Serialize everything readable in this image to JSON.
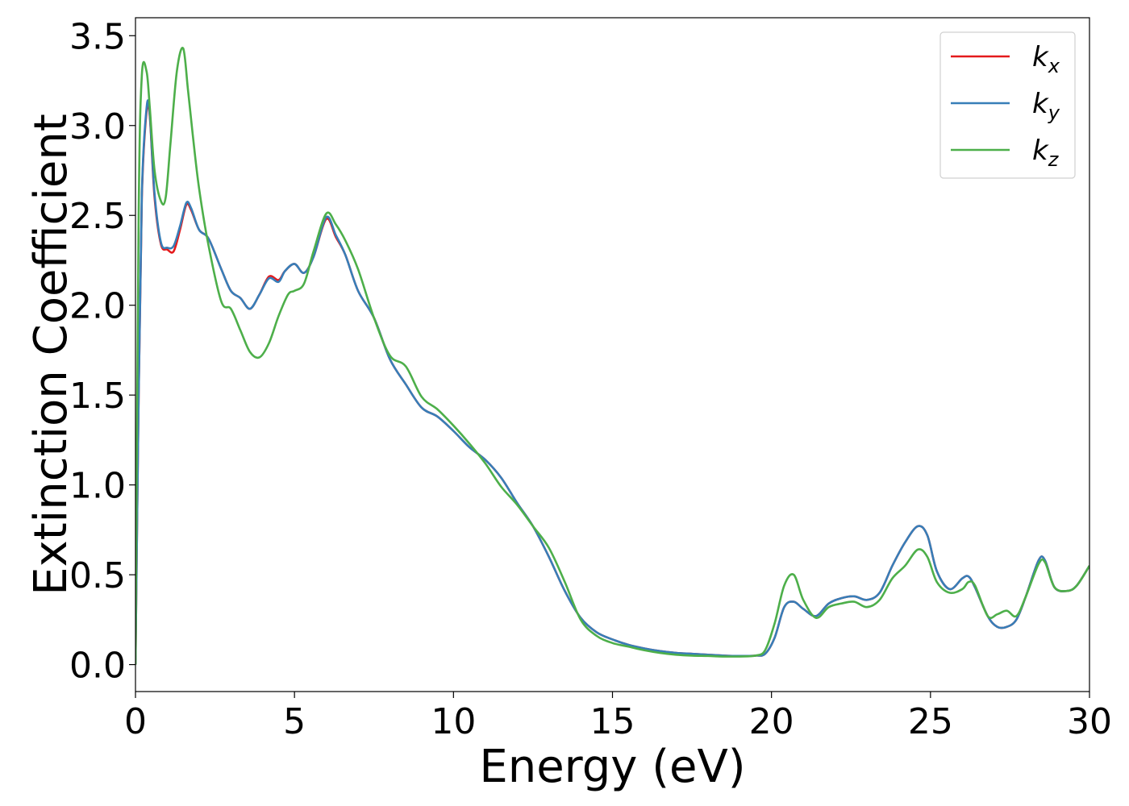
{
  "chart_data": {
    "type": "line",
    "title": "",
    "xlabel": "Energy (eV)",
    "ylabel": "Extinction Coefficient",
    "xlim": [
      0,
      30
    ],
    "ylim": [
      -0.15,
      3.6
    ],
    "xticks": [
      0,
      5,
      10,
      15,
      20,
      25,
      30
    ],
    "yticks": [
      0.0,
      0.5,
      1.0,
      1.5,
      2.0,
      2.5,
      3.0,
      3.5
    ],
    "xtick_labels": [
      "0",
      "5",
      "10",
      "15",
      "20",
      "25",
      "30"
    ],
    "ytick_labels": [
      "0.0",
      "0.5",
      "1.0",
      "1.5",
      "2.0",
      "2.5",
      "3.0",
      "3.5"
    ],
    "grid": false,
    "legend_position": "top-right",
    "series": [
      {
        "name": "k_x",
        "label_base": "k",
        "label_sub": "x",
        "color": "#e41a1c",
        "x": [
          0,
          0.1,
          0.2,
          0.35,
          0.45,
          0.6,
          0.8,
          1.0,
          1.2,
          1.4,
          1.6,
          1.75,
          2.0,
          2.3,
          2.7,
          3.0,
          3.3,
          3.6,
          3.9,
          4.2,
          4.5,
          4.7,
          5.0,
          5.3,
          5.6,
          6.0,
          6.3,
          6.6,
          7.0,
          7.5,
          8.0,
          8.5,
          9.0,
          9.5,
          10.0,
          10.5,
          11.0,
          11.5,
          12.0,
          12.5,
          13.0,
          13.5,
          14.0,
          14.5,
          15.0,
          15.5,
          16.0,
          16.5,
          17.0,
          17.5,
          18.0,
          18.5,
          19.0,
          19.5,
          19.8,
          20.1,
          20.4,
          20.7,
          21.0,
          21.4,
          21.8,
          22.2,
          22.6,
          23.0,
          23.4,
          23.8,
          24.2,
          24.6,
          24.9,
          25.2,
          25.6,
          26.0,
          26.2,
          26.4,
          26.8,
          27.1,
          27.4,
          27.7,
          28.0,
          28.4,
          28.6,
          28.9,
          29.3,
          29.6,
          30.0
        ],
        "y": [
          0.0,
          1.5,
          2.6,
          3.08,
          3.05,
          2.6,
          2.34,
          2.31,
          2.3,
          2.42,
          2.56,
          2.53,
          2.42,
          2.37,
          2.2,
          2.08,
          2.04,
          1.98,
          2.06,
          2.16,
          2.14,
          2.19,
          2.23,
          2.18,
          2.27,
          2.48,
          2.38,
          2.28,
          2.08,
          1.93,
          1.7,
          1.56,
          1.43,
          1.38,
          1.3,
          1.21,
          1.14,
          1.04,
          0.9,
          0.77,
          0.6,
          0.41,
          0.26,
          0.18,
          0.14,
          0.11,
          0.09,
          0.075,
          0.065,
          0.06,
          0.055,
          0.05,
          0.048,
          0.05,
          0.06,
          0.15,
          0.32,
          0.35,
          0.31,
          0.27,
          0.34,
          0.37,
          0.38,
          0.36,
          0.4,
          0.55,
          0.68,
          0.77,
          0.72,
          0.52,
          0.42,
          0.48,
          0.49,
          0.43,
          0.27,
          0.21,
          0.21,
          0.25,
          0.38,
          0.58,
          0.58,
          0.43,
          0.41,
          0.44,
          0.55
        ]
      },
      {
        "name": "k_y",
        "label_base": "k",
        "label_sub": "y",
        "color": "#377eb8",
        "x": [
          0,
          0.1,
          0.2,
          0.35,
          0.45,
          0.6,
          0.8,
          1.0,
          1.2,
          1.4,
          1.6,
          1.75,
          2.0,
          2.3,
          2.7,
          3.0,
          3.3,
          3.6,
          3.9,
          4.2,
          4.5,
          4.7,
          5.0,
          5.3,
          5.6,
          6.0,
          6.3,
          6.6,
          7.0,
          7.5,
          8.0,
          8.5,
          9.0,
          9.5,
          10.0,
          10.5,
          11.0,
          11.5,
          12.0,
          12.5,
          13.0,
          13.5,
          14.0,
          14.5,
          15.0,
          15.5,
          16.0,
          16.5,
          17.0,
          17.5,
          18.0,
          18.5,
          19.0,
          19.5,
          19.8,
          20.1,
          20.4,
          20.7,
          21.0,
          21.4,
          21.8,
          22.2,
          22.6,
          23.0,
          23.4,
          23.8,
          24.2,
          24.6,
          24.9,
          25.2,
          25.6,
          26.0,
          26.2,
          26.4,
          26.8,
          27.1,
          27.4,
          27.7,
          28.0,
          28.4,
          28.6,
          28.9,
          29.3,
          29.6,
          30.0
        ],
        "y": [
          0.0,
          1.5,
          2.62,
          3.1,
          3.06,
          2.62,
          2.35,
          2.32,
          2.33,
          2.44,
          2.57,
          2.54,
          2.42,
          2.37,
          2.2,
          2.08,
          2.04,
          1.98,
          2.06,
          2.15,
          2.13,
          2.19,
          2.23,
          2.18,
          2.27,
          2.49,
          2.39,
          2.28,
          2.08,
          1.93,
          1.7,
          1.56,
          1.43,
          1.38,
          1.3,
          1.21,
          1.14,
          1.04,
          0.9,
          0.77,
          0.6,
          0.41,
          0.26,
          0.18,
          0.14,
          0.11,
          0.09,
          0.075,
          0.065,
          0.06,
          0.055,
          0.05,
          0.048,
          0.05,
          0.06,
          0.15,
          0.32,
          0.35,
          0.31,
          0.27,
          0.34,
          0.37,
          0.38,
          0.36,
          0.4,
          0.55,
          0.68,
          0.77,
          0.72,
          0.52,
          0.42,
          0.48,
          0.49,
          0.43,
          0.27,
          0.21,
          0.21,
          0.25,
          0.38,
          0.58,
          0.58,
          0.43,
          0.41,
          0.44,
          0.55
        ]
      },
      {
        "name": "k_z",
        "label_base": "k",
        "label_sub": "z",
        "color": "#4daf4a",
        "x": [
          0,
          0.1,
          0.2,
          0.35,
          0.45,
          0.6,
          0.8,
          0.95,
          1.1,
          1.3,
          1.5,
          1.65,
          1.8,
          2.0,
          2.3,
          2.7,
          3.0,
          3.3,
          3.6,
          3.9,
          4.2,
          4.5,
          4.8,
          5.0,
          5.3,
          5.6,
          6.0,
          6.3,
          6.6,
          7.0,
          7.5,
          8.0,
          8.5,
          9.0,
          9.5,
          10.0,
          10.5,
          11.0,
          11.5,
          12.0,
          12.5,
          13.0,
          13.5,
          14.0,
          14.5,
          15.0,
          15.5,
          16.0,
          16.5,
          17.0,
          17.5,
          18.0,
          18.5,
          19.0,
          19.5,
          19.8,
          20.1,
          20.4,
          20.7,
          21.0,
          21.4,
          21.8,
          22.2,
          22.6,
          23.0,
          23.4,
          23.8,
          24.2,
          24.6,
          24.9,
          25.2,
          25.6,
          26.0,
          26.2,
          26.4,
          26.8,
          27.1,
          27.4,
          27.7,
          28.0,
          28.4,
          28.6,
          28.9,
          29.3,
          29.6,
          30.0
        ],
        "y": [
          0.0,
          2.5,
          3.28,
          3.3,
          3.1,
          2.75,
          2.58,
          2.6,
          2.9,
          3.3,
          3.43,
          3.2,
          2.95,
          2.65,
          2.33,
          2.02,
          1.98,
          1.86,
          1.74,
          1.71,
          1.79,
          1.94,
          2.06,
          2.08,
          2.12,
          2.3,
          2.51,
          2.45,
          2.36,
          2.2,
          1.93,
          1.72,
          1.66,
          1.49,
          1.42,
          1.33,
          1.23,
          1.12,
          0.99,
          0.89,
          0.77,
          0.65,
          0.46,
          0.25,
          0.16,
          0.12,
          0.1,
          0.08,
          0.065,
          0.055,
          0.05,
          0.048,
          0.045,
          0.045,
          0.05,
          0.08,
          0.23,
          0.44,
          0.5,
          0.36,
          0.26,
          0.32,
          0.34,
          0.35,
          0.32,
          0.36,
          0.48,
          0.55,
          0.64,
          0.6,
          0.46,
          0.4,
          0.42,
          0.46,
          0.44,
          0.27,
          0.28,
          0.3,
          0.27,
          0.38,
          0.56,
          0.57,
          0.43,
          0.41,
          0.44,
          0.55
        ]
      }
    ]
  }
}
